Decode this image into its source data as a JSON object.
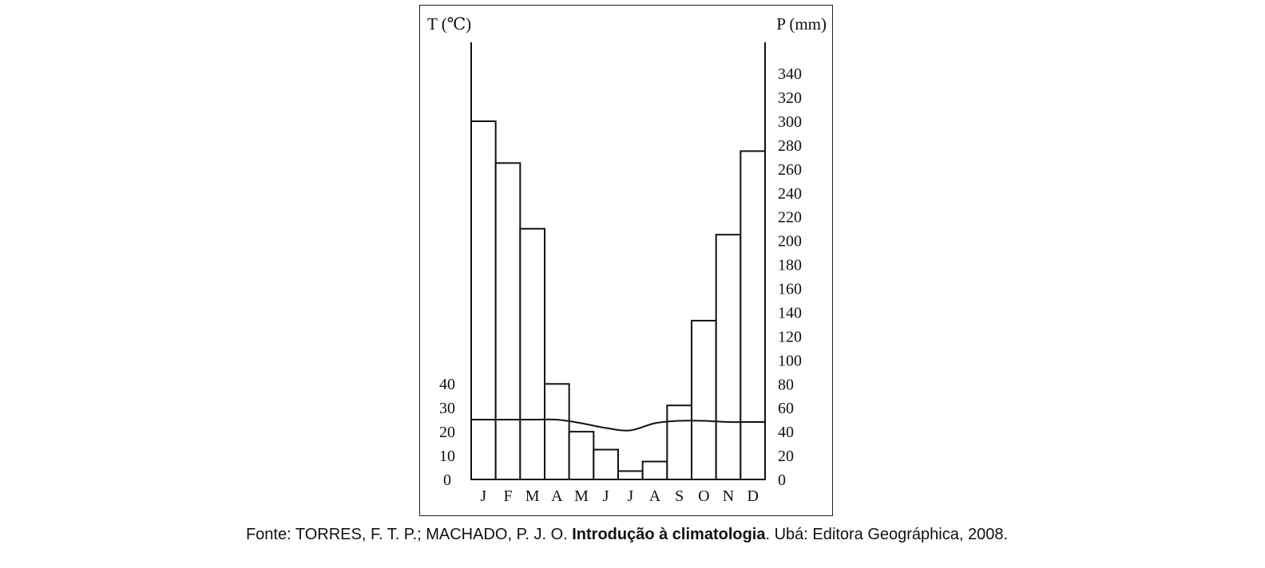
{
  "chart_data": {
    "type": "bar",
    "subtype": "climograph",
    "categories": [
      "J",
      "F",
      "M",
      "A",
      "M",
      "J",
      "J",
      "A",
      "S",
      "O",
      "N",
      "D"
    ],
    "series": [
      {
        "name": "",
        "kind": "bar",
        "axis": "right",
        "values": [
          300,
          265,
          210,
          80,
          40,
          25,
          7,
          15,
          62,
          133,
          205,
          275
        ]
      },
      {
        "name": "",
        "kind": "line",
        "axis": "left",
        "values": [
          25,
          25,
          25,
          25,
          23.5,
          21.5,
          20.5,
          23.5,
          24.5,
          24.5,
          24,
          24
        ]
      }
    ],
    "left_axis": {
      "label": "T (℃)",
      "ticks": [
        0,
        10,
        20,
        30,
        40
      ]
    },
    "right_axis": {
      "label": "P (mm)",
      "ticks": [
        0,
        20,
        40,
        60,
        80,
        100,
        120,
        140,
        160,
        180,
        200,
        220,
        240,
        260,
        280,
        300,
        320,
        340
      ]
    },
    "grid": false,
    "legend": "none"
  },
  "caption": {
    "prefix": "Fonte: TORRES, F. T. P.; MACHADO, P. J. O. ",
    "title": "Introdução à climatologia",
    "suffix": ". Ubá: Editora Geográphica, 2008."
  }
}
